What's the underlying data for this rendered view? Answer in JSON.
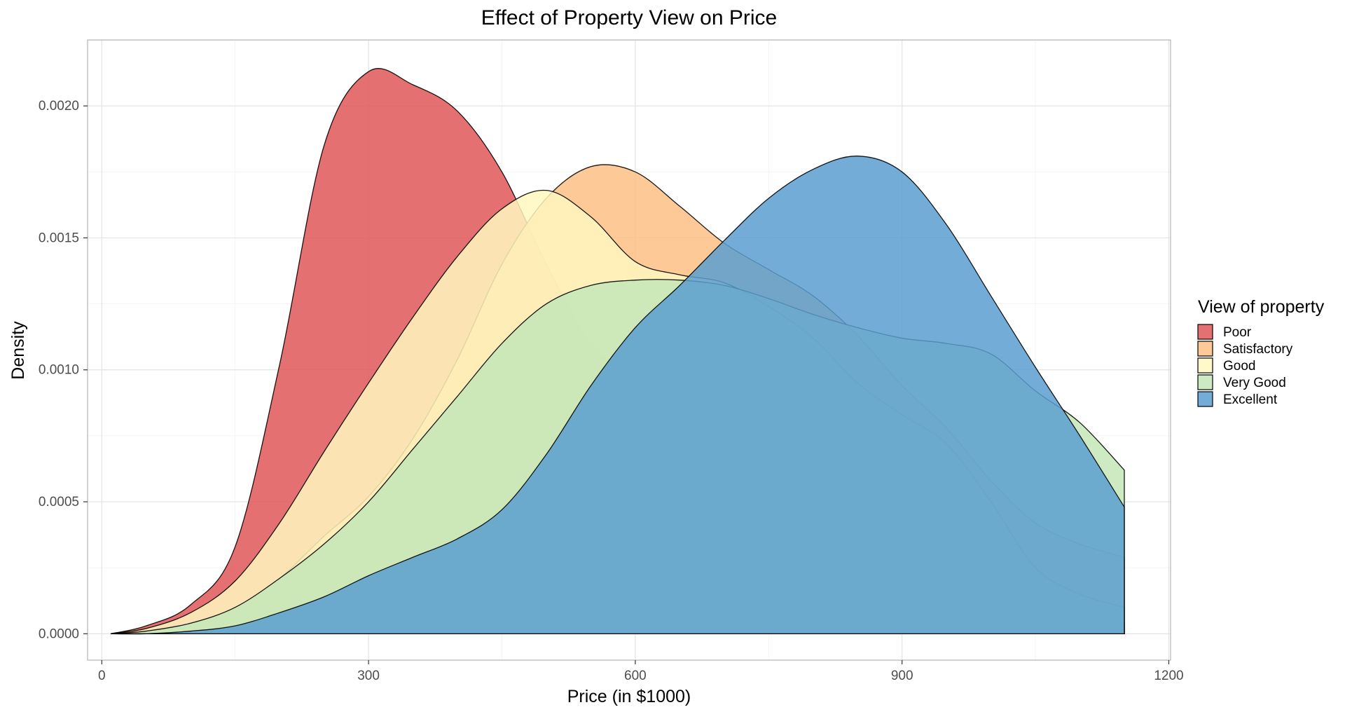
{
  "chart_data": {
    "type": "area",
    "subtype": "density",
    "title": "Effect of Property View on Price",
    "xlabel": "Price (in $1000)",
    "ylabel": "Density",
    "xlim": [
      -16,
      1202
    ],
    "ylim": [
      -0.0001,
      0.00225
    ],
    "xticks": [
      0,
      300,
      600,
      900,
      1200
    ],
    "yticks": [
      0.0,
      0.0005,
      0.001,
      0.0015,
      0.002
    ],
    "ytick_labels": [
      "0.0000",
      "0.0005",
      "0.0010",
      "0.0015",
      "0.0020"
    ],
    "grid": true,
    "legend": {
      "title": "View of property",
      "position": "right"
    },
    "series": [
      {
        "name": "Poor",
        "color": "#e15759",
        "x": [
          10,
          50,
          100,
          150,
          200,
          250,
          300,
          350,
          400,
          450,
          500,
          550,
          600,
          650,
          700,
          750,
          800,
          850,
          900,
          950,
          1000,
          1050,
          1100,
          1150
        ],
        "y": [
          0.0,
          3e-05,
          0.00011,
          0.00033,
          0.00102,
          0.00185,
          0.00213,
          0.00208,
          0.00198,
          0.00175,
          0.0014,
          0.0011,
          0.00095,
          0.00082,
          0.00072,
          0.00063,
          0.00048,
          0.00037,
          0.00027,
          0.0002,
          0.00014,
          9e-05,
          6e-05,
          4e-05
        ]
      },
      {
        "name": "Satisfactory",
        "color": "#fdbf85",
        "x": [
          10,
          50,
          100,
          150,
          200,
          250,
          300,
          350,
          400,
          450,
          500,
          550,
          600,
          650,
          700,
          750,
          800,
          850,
          900,
          950,
          1000,
          1050,
          1100,
          1150
        ],
        "y": [
          0.0,
          1e-05,
          4e-05,
          0.0001,
          0.00021,
          0.00037,
          0.00052,
          0.00074,
          0.00104,
          0.0014,
          0.00165,
          0.00177,
          0.00175,
          0.00162,
          0.00148,
          0.00138,
          0.00128,
          0.00113,
          0.00094,
          0.00078,
          0.00058,
          0.00042,
          0.00034,
          0.00029
        ]
      },
      {
        "name": "Good",
        "color": "#fff7bf",
        "x": [
          10,
          50,
          100,
          150,
          200,
          250,
          300,
          350,
          400,
          450,
          500,
          550,
          600,
          650,
          700,
          750,
          800,
          850,
          900,
          950,
          1000,
          1050,
          1100,
          1150
        ],
        "y": [
          0.0,
          2e-05,
          8e-05,
          0.0002,
          0.00042,
          0.00069,
          0.00095,
          0.0012,
          0.00143,
          0.00161,
          0.00168,
          0.00158,
          0.00141,
          0.00136,
          0.00133,
          0.00124,
          0.00112,
          0.00095,
          0.00083,
          0.00072,
          0.0005,
          0.00025,
          0.00015,
          0.0001
        ]
      },
      {
        "name": "Very Good",
        "color": "#c4e6b8",
        "x": [
          10,
          50,
          100,
          150,
          200,
          250,
          300,
          350,
          400,
          450,
          500,
          550,
          600,
          650,
          700,
          750,
          800,
          850,
          900,
          950,
          1000,
          1050,
          1100,
          1150
        ],
        "y": [
          0.0,
          1e-05,
          4e-05,
          0.0001,
          0.00021,
          0.00034,
          0.0005,
          0.0007,
          0.0009,
          0.0011,
          0.00125,
          0.00132,
          0.00134,
          0.00134,
          0.00132,
          0.00127,
          0.00121,
          0.00116,
          0.00112,
          0.0011,
          0.00106,
          0.00092,
          0.0008,
          0.00062
        ]
      },
      {
        "name": "Excellent",
        "color": "#5b9fd0",
        "x": [
          10,
          50,
          100,
          150,
          200,
          250,
          300,
          350,
          400,
          450,
          500,
          550,
          600,
          650,
          700,
          750,
          800,
          850,
          900,
          950,
          1000,
          1050,
          1100,
          1150
        ],
        "y": [
          0.0,
          0.0,
          1e-05,
          3e-05,
          8e-05,
          0.00014,
          0.00022,
          0.00029,
          0.00036,
          0.00047,
          0.00068,
          0.00094,
          0.00116,
          0.00132,
          0.00149,
          0.00165,
          0.00176,
          0.00181,
          0.00175,
          0.00155,
          0.00128,
          0.00101,
          0.00075,
          0.00048
        ]
      }
    ]
  }
}
